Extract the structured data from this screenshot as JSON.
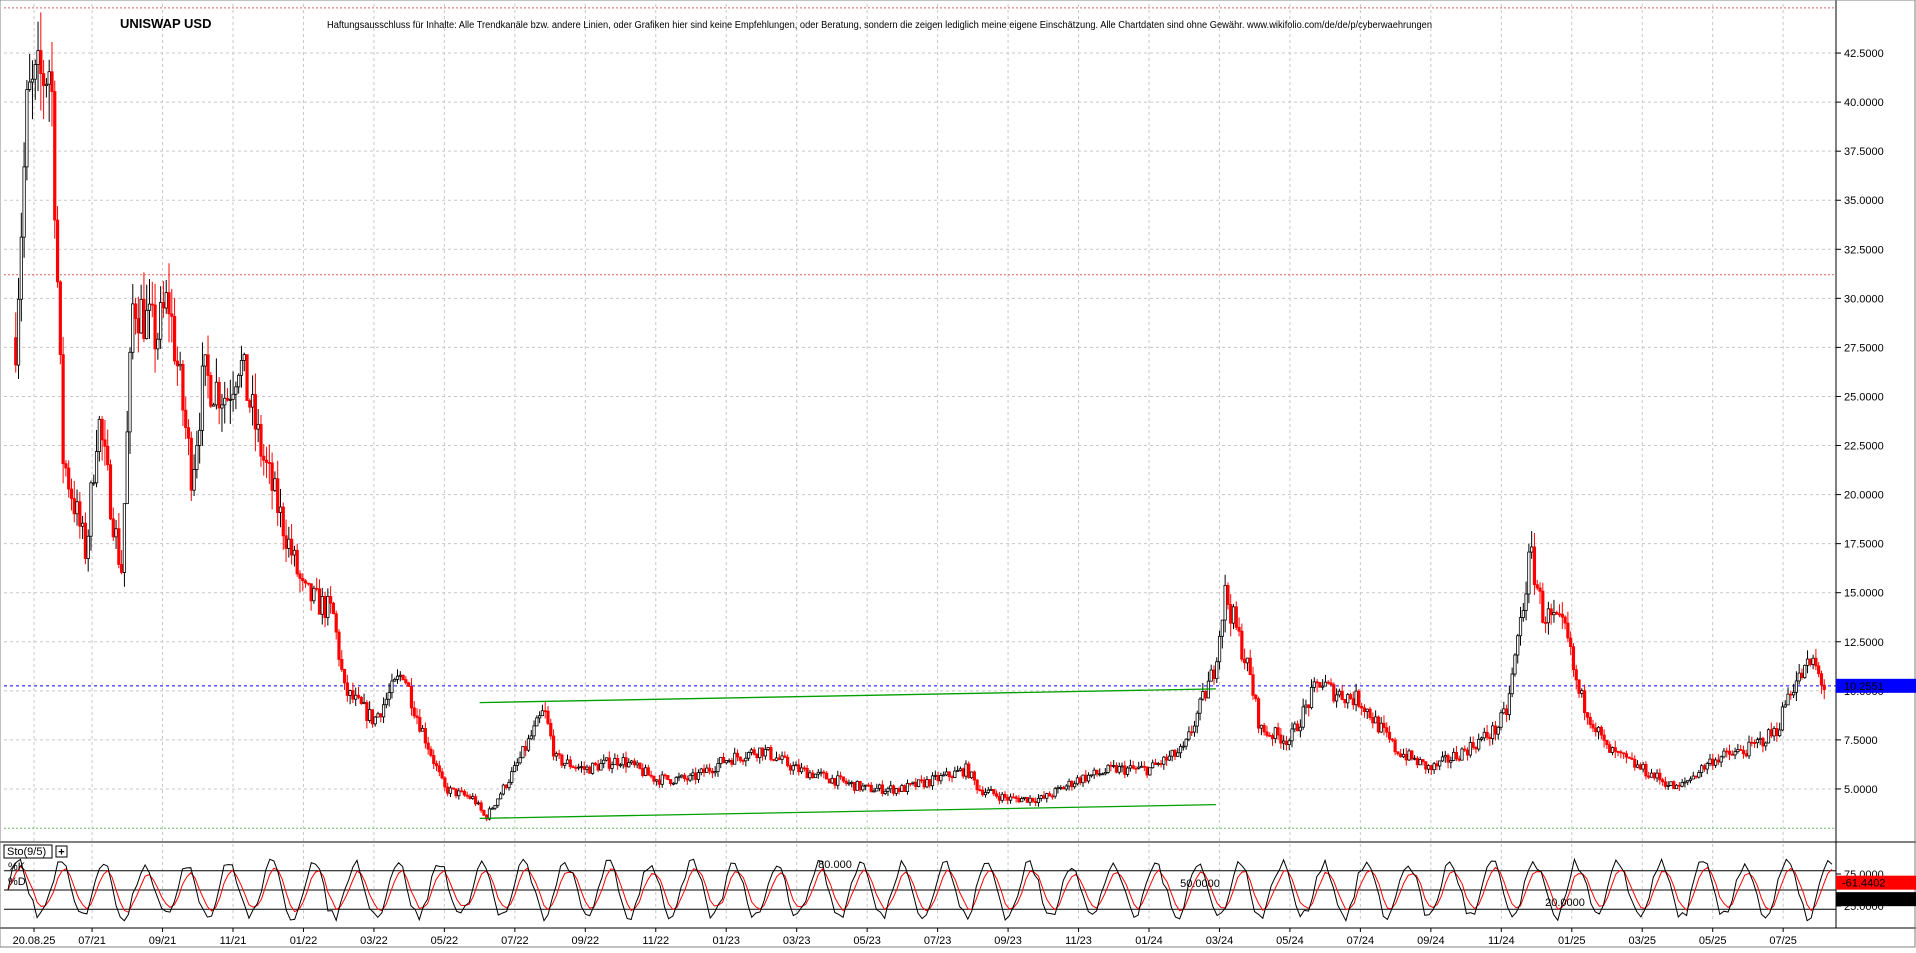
{
  "chart_data": {
    "type": "candlestick",
    "title": "UNISWAP USD",
    "disclaimer": "Haftungsausschluss für Inhalte: Alle Trendkanäle bzw. andere Linien, oder Grafiken hier sind keine Empfehlungen, oder Beratung, sondern die zeigen lediglich meine eigene Einschätzung. Alle Chartdaten sind ohne Gewähr. www.wikifolio.com/de/de/p/cyberwaehrungen",
    "ylim": [
      2.5,
      45.0
    ],
    "y_ticks": [
      "42.5000",
      "40.0000",
      "37.5000",
      "35.0000",
      "32.5000",
      "30.0000",
      "27.5000",
      "25.0000",
      "22.5000",
      "20.0000",
      "17.5000",
      "15.0000",
      "12.5000",
      "10.0000",
      "7.5000",
      "5.0000"
    ],
    "x_ticks": [
      "20.08.25",
      "07/21",
      "09/21",
      "11/21",
      "01/22",
      "03/22",
      "05/22",
      "07/22",
      "09/22",
      "11/22",
      "01/23",
      "03/23",
      "05/23",
      "07/23",
      "09/23",
      "11/23",
      "01/24",
      "03/24",
      "05/24",
      "07/24",
      "09/24",
      "11/24",
      "01/25",
      "03/25",
      "05/25",
      "07/25"
    ],
    "grid": true,
    "colors": {
      "up": "#000000",
      "down": "#ff0000",
      "current": "#0000ff",
      "trend": "#00a000",
      "osc_k": "#000000",
      "osc_d": "#ff0000"
    },
    "price_path": [
      [
        "2021-05",
        28
      ],
      [
        "2021-05",
        40
      ],
      [
        "2021-06",
        42
      ],
      [
        "2021-06",
        22
      ],
      [
        "2021-07",
        17
      ],
      [
        "2021-07",
        24
      ],
      [
        "2021-08",
        16
      ],
      [
        "2021-08",
        30
      ],
      [
        "2021-09",
        28
      ],
      [
        "2021-09",
        30
      ],
      [
        "2021-10",
        21
      ],
      [
        "2021-10",
        26
      ],
      [
        "2021-11",
        25
      ],
      [
        "2021-11",
        27
      ],
      [
        "2021-12",
        22
      ],
      [
        "2021-12",
        20
      ],
      [
        "2022-01",
        15
      ],
      [
        "2022-02",
        14
      ],
      [
        "2022-02",
        10
      ],
      [
        "2022-03",
        8.5
      ],
      [
        "2022-04",
        11
      ],
      [
        "2022-04",
        9
      ],
      [
        "2022-05",
        5
      ],
      [
        "2022-06",
        4.5
      ],
      [
        "2022-06",
        3.5
      ],
      [
        "2022-07",
        6
      ],
      [
        "2022-08",
        9
      ],
      [
        "2022-08",
        6.5
      ],
      [
        "2022-09",
        6
      ],
      [
        "2022-10",
        6.5
      ],
      [
        "2022-11",
        5.5
      ],
      [
        "2022-12",
        5.5
      ],
      [
        "2023-01",
        6.5
      ],
      [
        "2023-02",
        7
      ],
      [
        "2023-03",
        6
      ],
      [
        "2023-04",
        5.5
      ],
      [
        "2023-05",
        5
      ],
      [
        "2023-06",
        5
      ],
      [
        "2023-07",
        5.5
      ],
      [
        "2023-08",
        6
      ],
      [
        "2023-08",
        5
      ],
      [
        "2023-09",
        4.5
      ],
      [
        "2023-10",
        4.5
      ],
      [
        "2023-11",
        5.5
      ],
      [
        "2023-12",
        6
      ],
      [
        "2024-01",
        6
      ],
      [
        "2024-02",
        7
      ],
      [
        "2024-03",
        11
      ],
      [
        "2024-03",
        15
      ],
      [
        "2024-04",
        11
      ],
      [
        "2024-04",
        8
      ],
      [
        "2024-05",
        7.5
      ],
      [
        "2024-06",
        10.5
      ],
      [
        "2024-06",
        10
      ],
      [
        "2024-07",
        9.5
      ],
      [
        "2024-08",
        7
      ],
      [
        "2024-09",
        6
      ],
      [
        "2024-10",
        7
      ],
      [
        "2024-11",
        8
      ],
      [
        "2024-11",
        9
      ],
      [
        "2024-12",
        17
      ],
      [
        "2024-12",
        14
      ],
      [
        "2025-01",
        13
      ],
      [
        "2025-01",
        10
      ],
      [
        "2025-02",
        7
      ],
      [
        "2025-03",
        6
      ],
      [
        "2025-04",
        5
      ],
      [
        "2025-05",
        6.5
      ],
      [
        "2025-06",
        7
      ],
      [
        "2025-07",
        8
      ],
      [
        "2025-07",
        10
      ],
      [
        "2025-08",
        11.5
      ],
      [
        "2025-08",
        10.2
      ]
    ],
    "current_price": 10.2551,
    "current_label": "10.2551",
    "resistance_level": 31.2,
    "trend_lines": [
      {
        "from": [
          "2022-06",
          9.4
        ],
        "to": [
          "2024-03",
          10.1
        ]
      },
      {
        "from": [
          "2022-06",
          3.5
        ],
        "to": [
          "2024-03",
          4.2
        ]
      }
    ],
    "oscillator": {
      "name": "Sto(9/5)",
      "k_label": "%K",
      "d_label": "%D",
      "levels": [
        "80.000",
        "50.0000",
        "20.0000"
      ],
      "level_values": [
        80,
        50,
        20
      ],
      "k_value": "61.4402",
      "d_value": "35.6872",
      "y_ticks": [
        "75.0000",
        "25.0000"
      ],
      "plus_sign": "+"
    }
  }
}
